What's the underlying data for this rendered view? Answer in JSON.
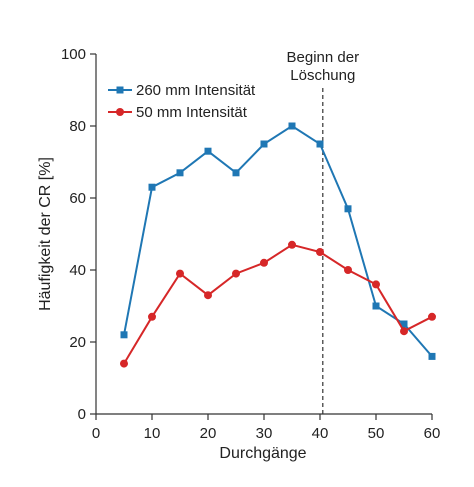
{
  "chart_data": {
    "type": "line",
    "xlabel": "Durchgänge",
    "ylabel": "Häufigkeit der CR [%]",
    "xlim": [
      0,
      60
    ],
    "ylim": [
      0,
      100
    ],
    "xticks": [
      0,
      10,
      20,
      30,
      40,
      50,
      60
    ],
    "yticks": [
      0,
      20,
      40,
      60,
      80,
      100
    ],
    "grid": false,
    "legend_position": "top-left",
    "series": [
      {
        "name": "260 mm Intensität",
        "color": "#1f77b4",
        "marker": "square",
        "x": [
          5,
          10,
          15,
          20,
          25,
          30,
          35,
          40,
          45,
          50,
          55,
          60
        ],
        "y": [
          22,
          63,
          67,
          73,
          67,
          75,
          80,
          75,
          57,
          30,
          25,
          16
        ]
      },
      {
        "name": "50 mm Intensität",
        "color": "#d62728",
        "marker": "circle",
        "x": [
          5,
          10,
          15,
          20,
          25,
          30,
          35,
          40,
          45,
          50,
          55,
          60
        ],
        "y": [
          14,
          27,
          39,
          33,
          39,
          42,
          47,
          45,
          40,
          36,
          23,
          27
        ]
      }
    ],
    "annotations": [
      {
        "text_lines": [
          "Beginn der",
          "Löschung"
        ],
        "x": 40.5,
        "style": "dashed-vertical-line"
      }
    ]
  }
}
